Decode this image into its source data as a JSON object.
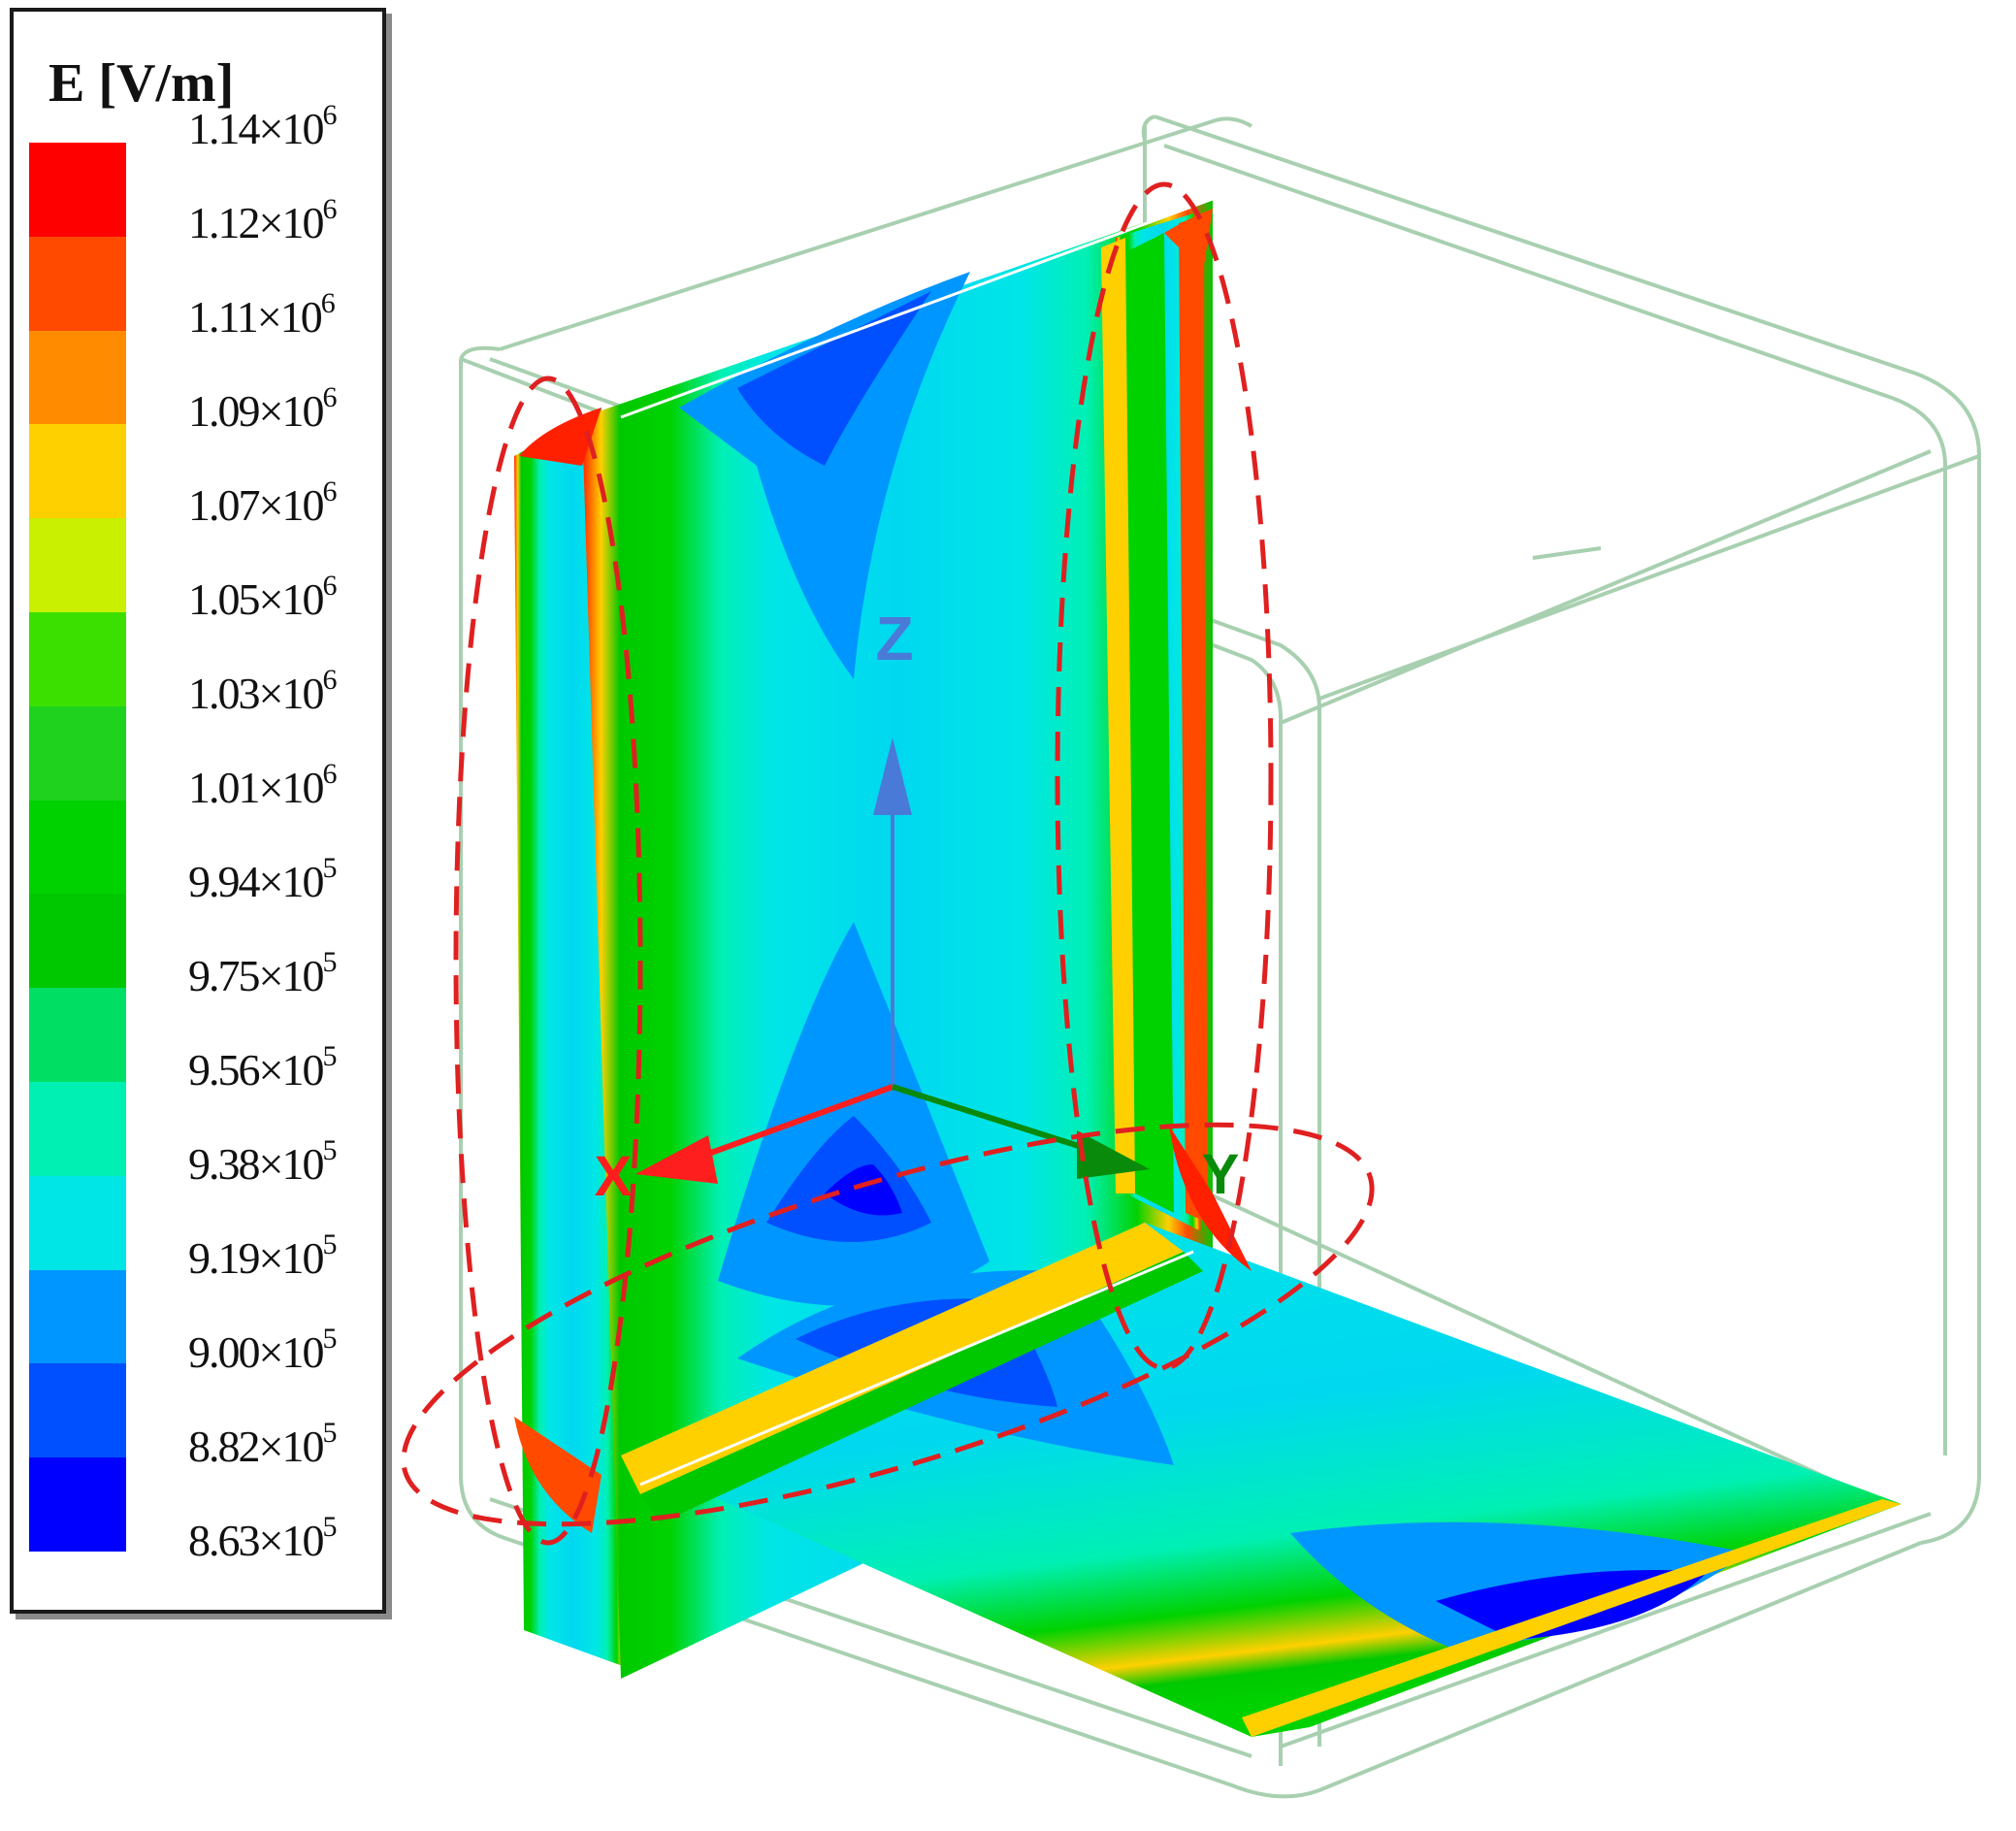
{
  "legend": {
    "title": "E [V/m]",
    "levels": [
      {
        "mant": "1.14",
        "exp": "6",
        "color": "#ff0000"
      },
      {
        "mant": "1.12",
        "exp": "6",
        "color": "#ff4a00"
      },
      {
        "mant": "1.11",
        "exp": "6",
        "color": "#ff8c00"
      },
      {
        "mant": "1.09",
        "exp": "6",
        "color": "#ffd000"
      },
      {
        "mant": "1.07",
        "exp": "6",
        "color": "#c8f000"
      },
      {
        "mant": "1.05",
        "exp": "6",
        "color": "#3ce000"
      },
      {
        "mant": "1.03",
        "exp": "6",
        "color": "#1ed21e"
      },
      {
        "mant": "1.01",
        "exp": "6",
        "color": "#00d200"
      },
      {
        "mant": "9.94",
        "exp": "5",
        "color": "#00c800"
      },
      {
        "mant": "9.75",
        "exp": "5",
        "color": "#00de64"
      },
      {
        "mant": "9.56",
        "exp": "5",
        "color": "#00f0b4"
      },
      {
        "mant": "9.38",
        "exp": "5",
        "color": "#00e6e6"
      },
      {
        "mant": "9.19",
        "exp": "5",
        "color": "#0096ff"
      },
      {
        "mant": "9.00",
        "exp": "5",
        "color": "#0050ff"
      },
      {
        "mant": "8.82",
        "exp": "5",
        "color": "#0000ff"
      },
      {
        "mant": "8.63",
        "exp": "5",
        "color": "#0000ff"
      }
    ]
  },
  "axes": {
    "x_label": "X",
    "y_label": "Y",
    "z_label": "Z",
    "x_color": "#ff1e1e",
    "y_color": "#0a8a0a",
    "z_color": "#4a7ad8"
  },
  "highlight_color": "#e02020",
  "box_color": "#a8d0b0"
}
